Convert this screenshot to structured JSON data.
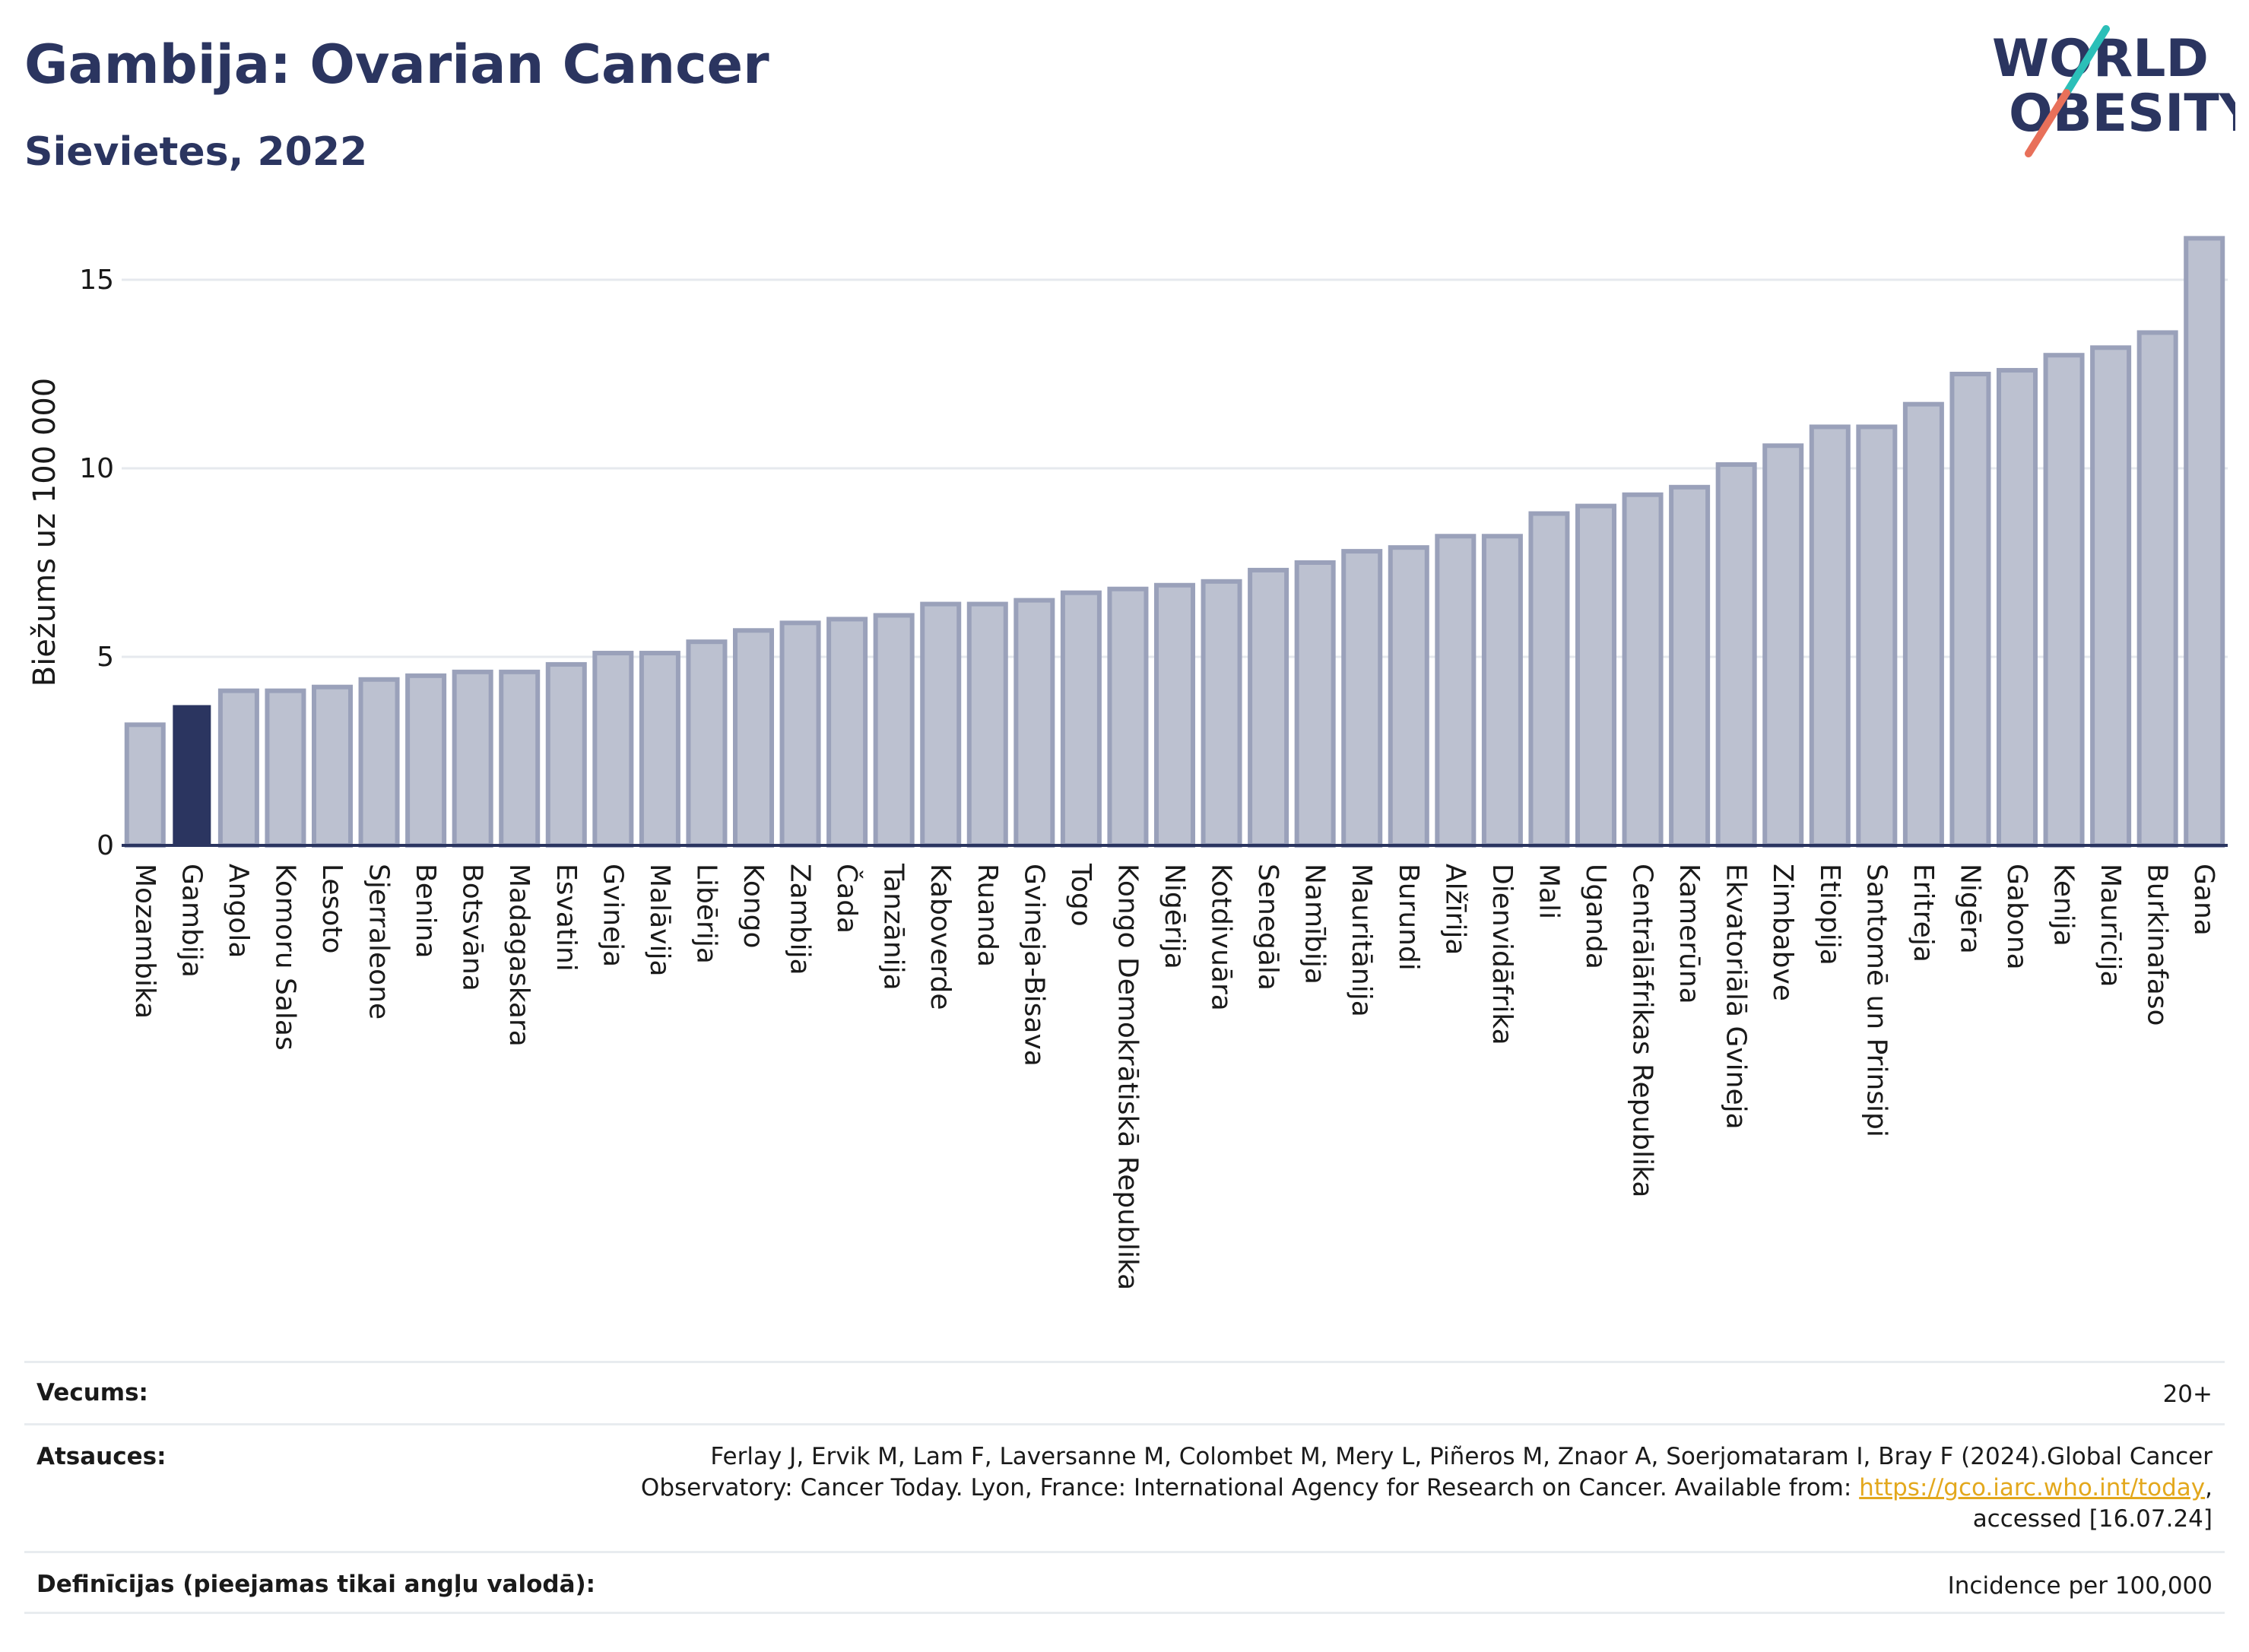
{
  "header": {
    "title": "Gambija: Ovarian Cancer",
    "subtitle": "Sievietes, 2022"
  },
  "logo": {
    "line1": "WORLD",
    "line2": "OBESITY"
  },
  "colors": {
    "navy": "#2b3560",
    "bar_fill": "#bcc1d0",
    "bar_stroke": "#9aa1ba",
    "highlight": "#2b3560",
    "teal": "#2bbfb8",
    "coral": "#e8705a",
    "grid": "#e6e9ee"
  },
  "chart_data": {
    "type": "bar",
    "ylabel": "Biežums uz 100 000",
    "xlabel": "",
    "ylim": [
      0,
      16.5
    ],
    "yticks": [
      0,
      5,
      10,
      15
    ],
    "highlight_category": "Gambija",
    "categories": [
      "Mozambika",
      "Gambija",
      "Angola",
      "Komoru Salas",
      "Lesoto",
      "Sjerraleone",
      "Benina",
      "Botsvāna",
      "Madagaskara",
      "Esvatini",
      "Gvineja",
      "Malāvija",
      "Libērija",
      "Kongo",
      "Zambija",
      "Čada",
      "Tanzānija",
      "Kaboverde",
      "Ruanda",
      "Gvineja-Bisava",
      "Togo",
      "Kongo Demokrātiskā Republika",
      "Nigērija",
      "Kotdivuāra",
      "Senegāla",
      "Namībija",
      "Mauritānija",
      "Burundi",
      "Alžīrija",
      "Dienvidāfrika",
      "Mali",
      "Uganda",
      "Centrālāfrikas Republika",
      "Kamerūna",
      "Ekvatoriālā Gvineja",
      "Zimbabve",
      "Etiopija",
      "Santomē un Prinsipi",
      "Eritreja",
      "Nigēra",
      "Gabona",
      "Kenija",
      "Maurīcija",
      "Burkinafaso",
      "Gana"
    ],
    "values": [
      3.2,
      3.7,
      4.1,
      4.1,
      4.2,
      4.4,
      4.5,
      4.6,
      4.6,
      4.8,
      5.1,
      5.1,
      5.4,
      5.7,
      5.9,
      6.0,
      6.1,
      6.4,
      6.4,
      6.5,
      6.7,
      6.8,
      6.9,
      7.0,
      7.3,
      7.5,
      7.8,
      7.9,
      8.2,
      8.2,
      8.8,
      9.0,
      9.3,
      9.5,
      10.1,
      10.6,
      11.1,
      11.1,
      11.7,
      12.5,
      12.6,
      13.0,
      13.2,
      13.6,
      16.1
    ]
  },
  "footer": {
    "age_label": "Vecums:",
    "age_value": "20+",
    "refs_label": "Atsauces:",
    "refs_line1": "Ferlay J, Ervik M, Lam F, Laversanne M, Colombet M, Mery L, Piñeros M, Znaor A, Soerjomataram I, Bray F (2024).Global Cancer",
    "refs_line2_text": "Observatory: Cancer Today. Lyon, France: International Agency for Research on Cancer. Available from: ",
    "refs_link": "https://gco.iarc.who.int/today",
    "refs_line2_end": ",",
    "refs_line3": "accessed [16.07.24]",
    "defs_label": "Definīcijas (pieejamas tikai angļu valodā):",
    "defs_value": "Incidence per 100,000"
  }
}
